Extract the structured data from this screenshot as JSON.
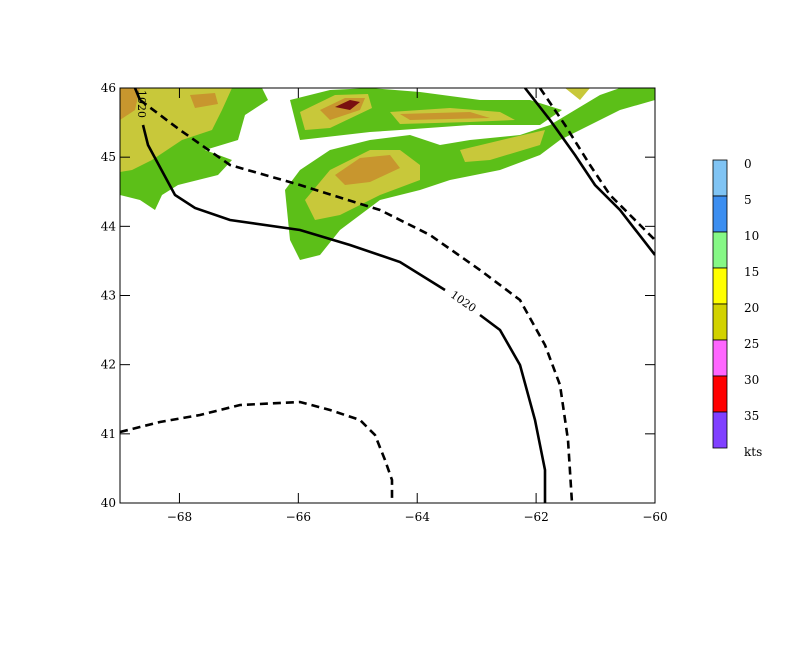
{
  "axes": {
    "xlim": [
      -69,
      -60
    ],
    "ylim": [
      40,
      46
    ],
    "xticks": [
      {
        "value": -68,
        "label": "−68"
      },
      {
        "value": -66,
        "label": "−66"
      },
      {
        "value": -64,
        "label": "−64"
      },
      {
        "value": -62,
        "label": "−62"
      },
      {
        "value": -60,
        "label": "−60"
      }
    ],
    "yticks": [
      40,
      41,
      42,
      43,
      44,
      45,
      46
    ]
  },
  "contours": [
    {
      "label": "1020"
    },
    {
      "label": "1020"
    }
  ],
  "colorbar": {
    "levels": [
      0,
      5,
      10,
      15,
      20,
      25,
      30,
      35
    ],
    "unit": "kts",
    "colors": [
      "#80c4f4",
      "#3c8ef0",
      "#86f886",
      "#ffff00",
      "#d2d200",
      "#ff66ff",
      "#ff0000",
      "#8040ff"
    ]
  }
}
